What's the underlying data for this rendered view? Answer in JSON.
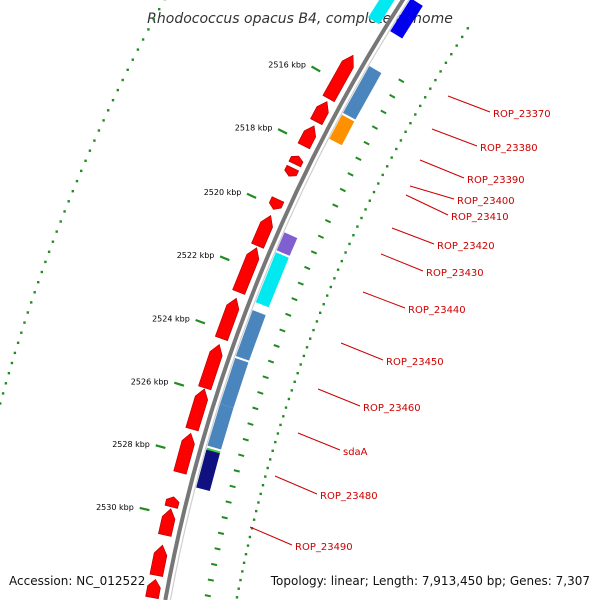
{
  "title": "Rhodococcus opacus B4, complete genome",
  "footer": {
    "accession_label": "Accession:",
    "accession": "NC_012522",
    "topology_label": "Topology:",
    "topology": "linear",
    "length_label": "Length:",
    "length": "7,913,450 bp",
    "genes_label": "Genes:",
    "genes": "7,307"
  },
  "colors": {
    "backbone": "#777777",
    "red_gene": "#ff0000",
    "steel": "#4a86bd",
    "orange": "#ff9000",
    "purple": "#8060d0",
    "cyan": "#00e8f0",
    "green": "#40cc40",
    "navy": "#101080",
    "blue": "#0000ee",
    "tick_green": "#228b22",
    "label_red": "#cc0000"
  },
  "ticks": [
    {
      "label": "2516 kbp"
    },
    {
      "label": "2518 kbp"
    },
    {
      "label": "2520 kbp"
    },
    {
      "label": "2522 kbp"
    },
    {
      "label": "2524 kbp"
    },
    {
      "label": "2526 kbp"
    },
    {
      "label": "2528 kbp"
    },
    {
      "label": "2530 kbp"
    }
  ],
  "gene_labels": [
    {
      "text": "ROP_23370"
    },
    {
      "text": "ROP_23380"
    },
    {
      "text": "ROP_23390"
    },
    {
      "text": "ROP_23400"
    },
    {
      "text": "ROP_23410"
    },
    {
      "text": "ROP_23420"
    },
    {
      "text": "ROP_23430"
    },
    {
      "text": "ROP_23440"
    },
    {
      "text": "ROP_23450"
    },
    {
      "text": "ROP_23460"
    },
    {
      "text": "sdaA"
    },
    {
      "text": "ROP_23480"
    },
    {
      "text": "ROP_23490"
    }
  ]
}
